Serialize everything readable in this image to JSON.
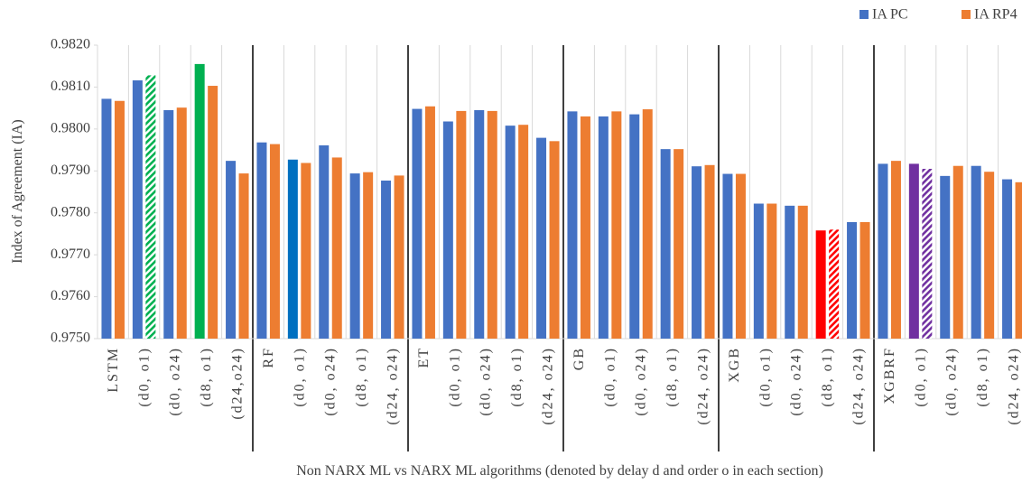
{
  "chart_data": {
    "type": "bar",
    "ylabel": "Index of Agreement (IA)",
    "xlabel": "Non NARX ML vs NARX ML algorithms (denoted by delay d and order o in each section)",
    "categories": [
      "LSTM",
      "(d0, o1)",
      "(d0, o24)",
      "(d8, o1)",
      "(d24,o24)",
      "RF",
      "(d0, o1)",
      "(d0, o24)",
      "(d8, o1)",
      "(d24, o24)",
      "ET",
      "(d0, o1)",
      "(d0, o24)",
      "(d8, o1)",
      "(d24, o24)",
      "GB",
      "(d0, o1)",
      "(d0, o24)",
      "(d8, o1)",
      "(d24, o24)",
      "XGB",
      "(d0, o1)",
      "(d0, o24)",
      "(d8, o1)",
      "(d24, o24)",
      "XGBRF",
      "(d0, o1)",
      "(d0, o24)",
      "(d8, o1)",
      "(d24, o24)"
    ],
    "series": [
      {
        "name": "IA PC",
        "color": "#4472c4",
        "values": [
          0.98072,
          0.98116,
          0.98045,
          0.98155,
          0.97924,
          0.97968,
          0.97927,
          0.97961,
          0.97894,
          0.97877,
          0.98048,
          0.98018,
          0.98045,
          0.98008,
          0.97979,
          0.98042,
          0.9803,
          0.98035,
          0.97952,
          0.97911,
          0.97893,
          0.97822,
          0.97817,
          0.97758,
          0.97778,
          0.97917,
          0.97917,
          0.97888,
          0.97912,
          0.9788
        ],
        "highlights": [
          {
            "index": 3,
            "color": "#00b050"
          },
          {
            "index": 6,
            "color": "#0070c0"
          },
          {
            "index": 23,
            "color": "#ff0000"
          },
          {
            "index": 26,
            "color": "#7030a0"
          }
        ]
      },
      {
        "name": "IA RP4",
        "color": "#ed7d31",
        "values": [
          0.98067,
          0.98128,
          0.98051,
          0.98103,
          0.97894,
          0.97964,
          0.97919,
          0.97932,
          0.97897,
          0.97889,
          0.98054,
          0.98043,
          0.98043,
          0.9801,
          0.97971,
          0.9803,
          0.98042,
          0.98047,
          0.97952,
          0.97914,
          0.97893,
          0.97822,
          0.97817,
          0.9776,
          0.97778,
          0.97924,
          0.97905,
          0.97912,
          0.97898,
          0.97873
        ],
        "highlights": [
          {
            "index": 1,
            "color": "#00b050",
            "hatch": true
          },
          {
            "index": 23,
            "color": "#ff0000",
            "hatch": true
          },
          {
            "index": 26,
            "color": "#7030a0",
            "hatch": true
          }
        ]
      }
    ],
    "ylim": [
      0.975,
      0.982
    ],
    "yticks": [
      {
        "value": 0.975,
        "label": "0.9750"
      },
      {
        "value": 0.976,
        "label": "0.9760"
      },
      {
        "value": 0.977,
        "label": "0.9770"
      },
      {
        "value": 0.978,
        "label": "0.9780"
      },
      {
        "value": 0.979,
        "label": "0.9790"
      },
      {
        "value": 0.98,
        "label": "0.9800"
      },
      {
        "value": 0.981,
        "label": "0.9810"
      },
      {
        "value": 0.982,
        "label": "0.9820"
      }
    ],
    "grid": "x",
    "legend": "top-right"
  }
}
